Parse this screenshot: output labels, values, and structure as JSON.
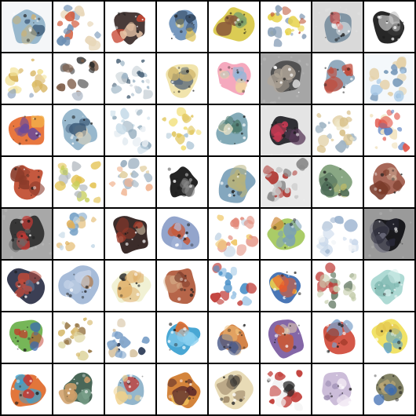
{
  "grid": {
    "rows": 8,
    "cols": 8,
    "tiles": [
      {
        "bg": "#f4f6f8",
        "colors": [
          "#8fb2c9",
          "#c9b27a",
          "#3c5a78"
        ],
        "kind": "blob"
      },
      {
        "bg": "#ffffff",
        "colors": [
          "#6d8fb3",
          "#d35a3a",
          "#e8d7b9"
        ],
        "kind": "scatter"
      },
      {
        "bg": "#ffffff",
        "colors": [
          "#3a2a28",
          "#c84632",
          "#e8c6a8"
        ],
        "kind": "blob"
      },
      {
        "bg": "#ffffff",
        "colors": [
          "#6a8fb8",
          "#e0c560",
          "#2d4058"
        ],
        "kind": "blob"
      },
      {
        "bg": "#ffffff",
        "colors": [
          "#d8c845",
          "#7aa06c",
          "#8b5a3a"
        ],
        "kind": "blob"
      },
      {
        "bg": "#ffffff",
        "colors": [
          "#e7d34a",
          "#c05a3a",
          "#8aa0b8"
        ],
        "kind": "scatter"
      },
      {
        "bg": "#d9d9d9",
        "colors": [
          "#7a8fa0",
          "#c43a35",
          "#f2f2f2"
        ],
        "kind": "blob"
      },
      {
        "bg": "#ffffff",
        "colors": [
          "#151515",
          "#3a3a3a",
          "#c8c8c8"
        ],
        "kind": "blob"
      },
      {
        "bg": "#ffffff",
        "colors": [
          "#f3e39a",
          "#d7b45e",
          "#7f98b7"
        ],
        "kind": "scatter"
      },
      {
        "bg": "#ffffff",
        "colors": [
          "#2a2a2a",
          "#7b5a45",
          "#b9c2cf"
        ],
        "kind": "scatter"
      },
      {
        "bg": "#ffffff",
        "colors": [
          "#9fb6c7",
          "#d0d8dd",
          "#465f75"
        ],
        "kind": "scatter"
      },
      {
        "bg": "#ffffff",
        "colors": [
          "#f0e2a5",
          "#d0b66b",
          "#5b6a7b"
        ],
        "kind": "blob"
      },
      {
        "bg": "#ffffff",
        "colors": [
          "#f4a2b8",
          "#f0d4a1",
          "#8fb7d8"
        ],
        "kind": "blob"
      },
      {
        "bg": "#a6a6a6",
        "colors": [
          "#4b4b4b",
          "#b2a79a",
          "#e9e9e9"
        ],
        "kind": "blob"
      },
      {
        "bg": "#ffffff",
        "colors": [
          "#8aa4b8",
          "#d8c7a6",
          "#c04a3a"
        ],
        "kind": "blob"
      },
      {
        "bg": "#f4f8fb",
        "colors": [
          "#a7c9e6",
          "#e4d0a6",
          "#7a9bbb"
        ],
        "kind": "scatter"
      },
      {
        "bg": "#ffffff",
        "colors": [
          "#e66b2f",
          "#f2b04a",
          "#6a4a9a"
        ],
        "kind": "blob"
      },
      {
        "bg": "#ffffff",
        "colors": [
          "#8fb2c9",
          "#3c5a78",
          "#e8d7b9"
        ],
        "kind": "blob"
      },
      {
        "bg": "#ffffff",
        "colors": [
          "#c7dbe8",
          "#e6edf2",
          "#90aabb"
        ],
        "kind": "scatter"
      },
      {
        "bg": "#ffffff",
        "colors": [
          "#f2e07c",
          "#e0c55a",
          "#b0c8d8"
        ],
        "kind": "scatter"
      },
      {
        "bg": "#ffffff",
        "colors": [
          "#7aa4b2",
          "#4d7a6c",
          "#e6e1c7"
        ],
        "kind": "blob"
      },
      {
        "bg": "#e4e4e4",
        "colors": [
          "#1f1f25",
          "#5a3a5a",
          "#d03a55"
        ],
        "kind": "blob"
      },
      {
        "bg": "#ffffff",
        "colors": [
          "#f0e7c8",
          "#d9c18a",
          "#9fb4c4"
        ],
        "kind": "scatter"
      },
      {
        "bg": "#ffffff",
        "colors": [
          "#e2574c",
          "#5b82c2",
          "#f2e4c2"
        ],
        "kind": "scatter"
      },
      {
        "bg": "#ffffff",
        "colors": [
          "#c04b2f",
          "#8a3a2a",
          "#7aa0b6"
        ],
        "kind": "blob"
      },
      {
        "bg": "#ffffff",
        "colors": [
          "#c6cf5a",
          "#e2c04a",
          "#a8b0b8"
        ],
        "kind": "scatter"
      },
      {
        "bg": "#ffffff",
        "colors": [
          "#e4d2a6",
          "#f0b08a",
          "#9db1c2"
        ],
        "kind": "scatter"
      },
      {
        "bg": "#ffffff",
        "colors": [
          "#111111",
          "#2e2e2e",
          "#8a8a8a"
        ],
        "kind": "blob"
      },
      {
        "bg": "#ffffff",
        "colors": [
          "#7a9fb8",
          "#b8b37a",
          "#3d5b75"
        ],
        "kind": "blob"
      },
      {
        "bg": "#e9e9e9",
        "colors": [
          "#c6c6c6",
          "#b03a35",
          "#8a8a8a"
        ],
        "kind": "scatter"
      },
      {
        "bg": "#ffffff",
        "colors": [
          "#7f9f7a",
          "#b7b76a",
          "#4b6a55"
        ],
        "kind": "blob"
      },
      {
        "bg": "#ffffff",
        "colors": [
          "#a05a4a",
          "#7a3a2a",
          "#d1b19a"
        ],
        "kind": "blob"
      },
      {
        "bg": "#a8a8a8",
        "colors": [
          "#2e2e2e",
          "#6a6a6a",
          "#c03a35"
        ],
        "kind": "blob"
      },
      {
        "bg": "#ffffff",
        "colors": [
          "#7aa4c8",
          "#c3d7e6",
          "#e0b05a"
        ],
        "kind": "scatter"
      },
      {
        "bg": "#ffffff",
        "colors": [
          "#2a1a18",
          "#a13a2a",
          "#e8d7b9"
        ],
        "kind": "blob"
      },
      {
        "bg": "#ffffff",
        "colors": [
          "#8a9dc8",
          "#b0bfe0",
          "#c85a3a"
        ],
        "kind": "blob"
      },
      {
        "bg": "#ffffff",
        "colors": [
          "#f0c86a",
          "#e28a7a",
          "#c7d7e6"
        ],
        "kind": "scatter"
      },
      {
        "bg": "#ffffff",
        "colors": [
          "#a3c85a",
          "#7a9fb8",
          "#d08a3a"
        ],
        "kind": "blob"
      },
      {
        "bg": "#ffffff",
        "colors": [
          "#c8d7ea",
          "#9bb3cf",
          "#f1f4f7"
        ],
        "kind": "scatter"
      },
      {
        "bg": "#9a9a9a",
        "colors": [
          "#0e0e12",
          "#2a2a3a",
          "#6a6a7a"
        ],
        "kind": "blob"
      },
      {
        "bg": "#ffffff",
        "colors": [
          "#2a2f45",
          "#c04a3a",
          "#5a6a8a"
        ],
        "kind": "blob"
      },
      {
        "bg": "#ffffff",
        "colors": [
          "#9fb6d6",
          "#c9d6ea",
          "#b07a4a"
        ],
        "kind": "blob"
      },
      {
        "bg": "#ffffff",
        "colors": [
          "#f0f0d0",
          "#e0b06a",
          "#2a2a2a"
        ],
        "kind": "blob"
      },
      {
        "bg": "#ffffff",
        "colors": [
          "#b0583a",
          "#7a3a2a",
          "#d6b08a"
        ],
        "kind": "blob"
      },
      {
        "bg": "#ffffff",
        "colors": [
          "#4a90c8",
          "#9fc7e6",
          "#c03a35"
        ],
        "kind": "scatter"
      },
      {
        "bg": "#ffffff",
        "colors": [
          "#3a6ab0",
          "#e85a2a",
          "#f0d04a"
        ],
        "kind": "blob"
      },
      {
        "bg": "#ffffff",
        "colors": [
          "#6a7f6a",
          "#c8d0b0",
          "#c03a35"
        ],
        "kind": "scatter"
      },
      {
        "bg": "#ffffff",
        "colors": [
          "#a7d7d0",
          "#d6efec",
          "#7fb7b0"
        ],
        "kind": "blob"
      },
      {
        "bg": "#ffffff",
        "colors": [
          "#6ab04a",
          "#c23a2a",
          "#3a6ab0"
        ],
        "kind": "blob"
      },
      {
        "bg": "#ffffff",
        "colors": [
          "#d6b86a",
          "#e0d8a6",
          "#9a7a4a"
        ],
        "kind": "scatter"
      },
      {
        "bg": "#ffffff",
        "colors": [
          "#2a3a55",
          "#7aa0c8",
          "#d6c2a0"
        ],
        "kind": "scatter"
      },
      {
        "bg": "#ffffff",
        "colors": [
          "#3aa0d0",
          "#e06a2a",
          "#8ad0f0"
        ],
        "kind": "blob"
      },
      {
        "bg": "#ffffff",
        "colors": [
          "#d07a3a",
          "#f0c07a",
          "#4a5a8a"
        ],
        "kind": "blob"
      },
      {
        "bg": "#ffffff",
        "colors": [
          "#7a5aa0",
          "#c85a3a",
          "#e6d2b0"
        ],
        "kind": "blob"
      },
      {
        "bg": "#ffffff",
        "colors": [
          "#d04a3a",
          "#a03a2a",
          "#7aa0c8"
        ],
        "kind": "blob"
      },
      {
        "bg": "#ffffff",
        "colors": [
          "#f0e05a",
          "#e0c04a",
          "#5aa0c8"
        ],
        "kind": "blob"
      },
      {
        "bg": "#ffffff",
        "colors": [
          "#e06a2a",
          "#c03a35",
          "#3aa0d0"
        ],
        "kind": "blob"
      },
      {
        "bg": "#ffffff",
        "colors": [
          "#3a5a4a",
          "#7aa08a",
          "#d0a06a"
        ],
        "kind": "blob"
      },
      {
        "bg": "#ffffff",
        "colors": [
          "#8ab0c8",
          "#f0d08a",
          "#c03a35"
        ],
        "kind": "blob"
      },
      {
        "bg": "#ffffff",
        "colors": [
          "#d07a2a",
          "#f0c05a",
          "#5a2a2a"
        ],
        "kind": "blob"
      },
      {
        "bg": "#ffffff",
        "colors": [
          "#e6d8b0",
          "#a08a6a",
          "#2a2a2a"
        ],
        "kind": "blob"
      },
      {
        "bg": "#ffffff",
        "colors": [
          "#1a1a1a",
          "#f2f2f2",
          "#c03a35"
        ],
        "kind": "scatter"
      },
      {
        "bg": "#ffffff",
        "colors": [
          "#c8b7d6",
          "#9a8ab0",
          "#f0e6f2"
        ],
        "kind": "blob"
      },
      {
        "bg": "#ffffff",
        "colors": [
          "#7a7a5a",
          "#c8b07a",
          "#3a6ab0"
        ],
        "kind": "blob"
      }
    ]
  }
}
